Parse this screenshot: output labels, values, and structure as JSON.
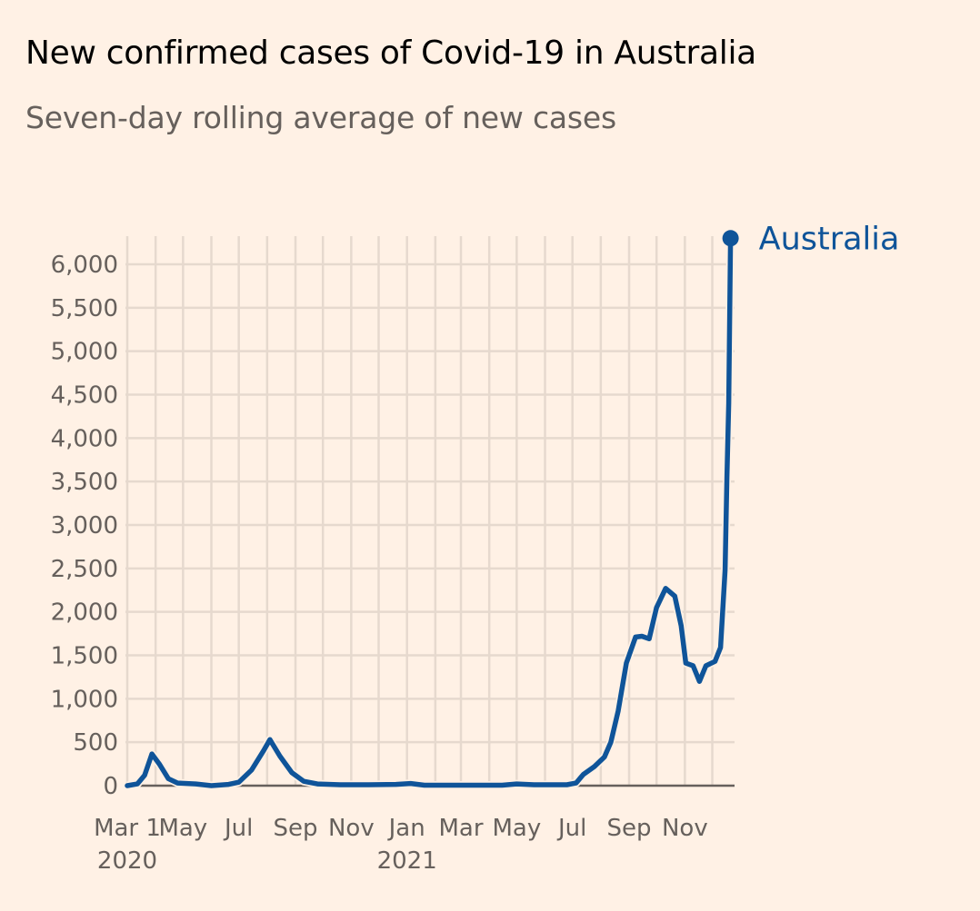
{
  "title": "New confirmed cases of Covid-19 in Australia",
  "subtitle": "Seven-day rolling average of new cases",
  "chart_data": {
    "type": "line",
    "title": "New confirmed cases of Covid-19 in Australia",
    "subtitle": "Seven-day rolling average of new cases",
    "xlabel": "",
    "ylabel": "",
    "ylim": [
      0,
      6300
    ],
    "xlim": [
      "2020-03-01",
      "2021-12-21"
    ],
    "grid": true,
    "legend": "right, at line end",
    "y_ticks": [
      0,
      500,
      1000,
      1500,
      2000,
      2500,
      3000,
      3500,
      4000,
      4500,
      5000,
      5500,
      6000
    ],
    "y_tick_labels": [
      "0",
      "500",
      "1,000",
      "1,500",
      "2,000",
      "2,500",
      "3,000",
      "3,500",
      "4,000",
      "4,500",
      "5,000",
      "5,500",
      "6,000"
    ],
    "x_ticks": [
      {
        "date": "2020-03-01",
        "label": "Mar 1",
        "year": "2020"
      },
      {
        "date": "2020-05-01",
        "label": "May"
      },
      {
        "date": "2020-07-01",
        "label": "Jul"
      },
      {
        "date": "2020-09-01",
        "label": "Sep"
      },
      {
        "date": "2020-11-01",
        "label": "Nov"
      },
      {
        "date": "2021-01-01",
        "label": "Jan",
        "year": "2021"
      },
      {
        "date": "2021-03-01",
        "label": "Mar"
      },
      {
        "date": "2021-05-01",
        "label": "May"
      },
      {
        "date": "2021-07-01",
        "label": "Jul"
      },
      {
        "date": "2021-09-01",
        "label": "Sep"
      },
      {
        "date": "2021-11-01",
        "label": "Nov"
      }
    ],
    "series": [
      {
        "name": "Australia",
        "color": "#0f5499",
        "points": [
          [
            "2020-03-01",
            0
          ],
          [
            "2020-03-12",
            20
          ],
          [
            "2020-03-20",
            120
          ],
          [
            "2020-03-28",
            365
          ],
          [
            "2020-04-05",
            250
          ],
          [
            "2020-04-15",
            80
          ],
          [
            "2020-04-25",
            30
          ],
          [
            "2020-05-15",
            20
          ],
          [
            "2020-06-01",
            0
          ],
          [
            "2020-06-20",
            15
          ],
          [
            "2020-07-01",
            40
          ],
          [
            "2020-07-15",
            180
          ],
          [
            "2020-07-28",
            400
          ],
          [
            "2020-08-04",
            530
          ],
          [
            "2020-08-15",
            340
          ],
          [
            "2020-08-28",
            150
          ],
          [
            "2020-09-10",
            50
          ],
          [
            "2020-09-25",
            20
          ],
          [
            "2020-10-20",
            10
          ],
          [
            "2020-11-20",
            10
          ],
          [
            "2020-12-20",
            15
          ],
          [
            "2021-01-05",
            25
          ],
          [
            "2021-01-20",
            5
          ],
          [
            "2021-04-15",
            5
          ],
          [
            "2021-05-01",
            20
          ],
          [
            "2021-05-20",
            10
          ],
          [
            "2021-06-25",
            10
          ],
          [
            "2021-07-05",
            30
          ],
          [
            "2021-07-13",
            130
          ],
          [
            "2021-07-25",
            220
          ],
          [
            "2021-08-05",
            330
          ],
          [
            "2021-08-12",
            500
          ],
          [
            "2021-08-20",
            860
          ],
          [
            "2021-08-29",
            1410
          ],
          [
            "2021-09-08",
            1710
          ],
          [
            "2021-09-15",
            1720
          ],
          [
            "2021-09-23",
            1690
          ],
          [
            "2021-10-01",
            2050
          ],
          [
            "2021-10-11",
            2270
          ],
          [
            "2021-10-21",
            2180
          ],
          [
            "2021-10-28",
            1840
          ],
          [
            "2021-11-02",
            1410
          ],
          [
            "2021-11-10",
            1380
          ],
          [
            "2021-11-17",
            1200
          ],
          [
            "2021-11-24",
            1380
          ],
          [
            "2021-12-04",
            1430
          ],
          [
            "2021-12-10",
            1590
          ],
          [
            "2021-12-15",
            2480
          ],
          [
            "2021-12-17",
            3540
          ],
          [
            "2021-12-19",
            4400
          ],
          [
            "2021-12-21",
            6300
          ]
        ]
      }
    ]
  }
}
